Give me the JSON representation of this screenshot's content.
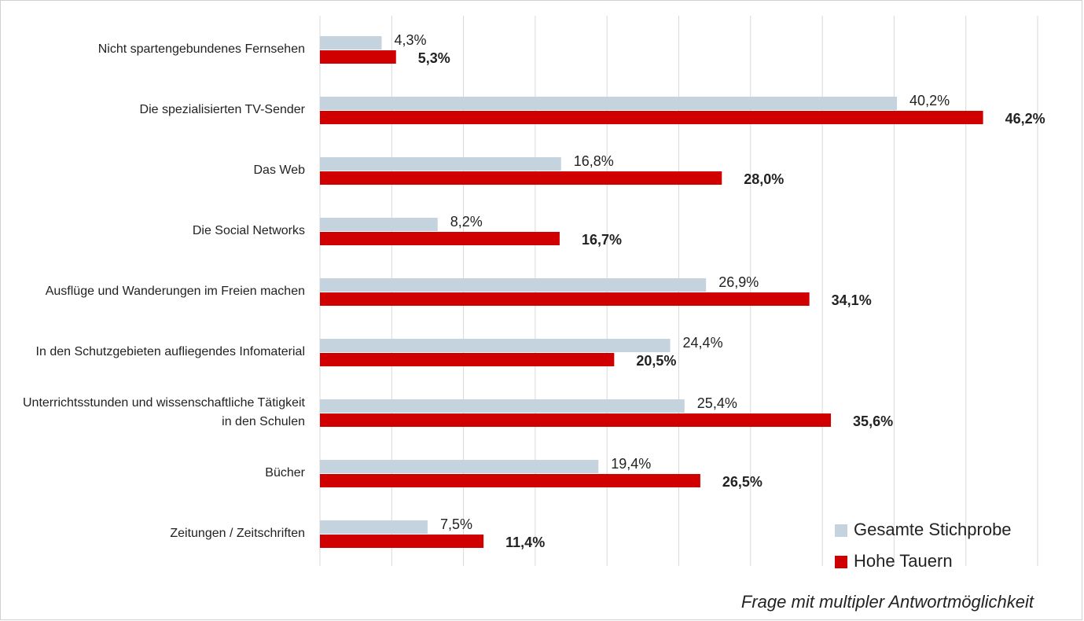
{
  "chart_data": {
    "type": "bar",
    "orientation": "horizontal",
    "categories": [
      "Nicht spartengebundenes Fernsehen",
      "Die spezialisierten TV-Sender",
      "Das Web",
      "Die Social Networks",
      "Ausflüge und Wanderungen im Freien machen",
      "In den Schutzgebieten aufliegendes Infomaterial",
      "Unterrichtsstunden und wissenschaftliche Tätigkeit in den Schulen",
      "Bücher",
      "Zeitungen / Zeitschriften"
    ],
    "series": [
      {
        "name": "Gesamte Stichprobe",
        "color": "#c5d3de",
        "values": [
          4.3,
          40.2,
          16.8,
          8.2,
          26.9,
          24.4,
          25.4,
          19.4,
          7.5
        ],
        "value_labels": [
          "4,3%",
          "40,2%",
          "16,8%",
          "8,2%",
          "26,9%",
          "24,4%",
          "25,4%",
          "19,4%",
          "7,5%"
        ]
      },
      {
        "name": "Hohe Tauern",
        "color": "#d00000",
        "values": [
          5.3,
          46.2,
          28.0,
          16.7,
          34.1,
          20.5,
          35.6,
          26.5,
          11.4
        ],
        "value_labels": [
          "5,3%",
          "46,2%",
          "28,0%",
          "16,7%",
          "34,1%",
          "20,5%",
          "35,6%",
          "26,5%",
          "11,4%"
        ]
      }
    ],
    "xlim": [
      0,
      50
    ],
    "xticks": [
      0,
      5,
      10,
      15,
      20,
      25,
      30,
      35,
      40,
      45,
      50
    ],
    "grid": true,
    "legend": "lower right",
    "annotation": "Frage mit multipler Antwortmöglichkeit"
  }
}
